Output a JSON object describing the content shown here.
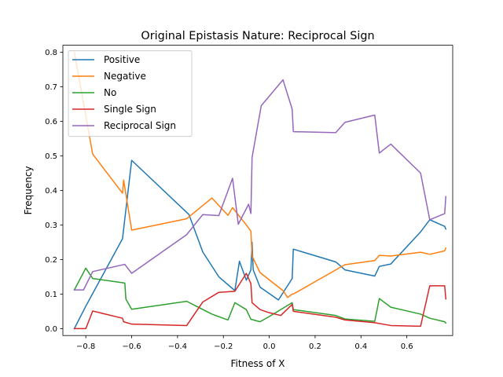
{
  "chart_data": {
    "type": "line",
    "title": "Original Epistasis Nature: Reciprocal Sign",
    "xlabel": "Fitness of X",
    "ylabel": "Frequency",
    "xlim": [
      -0.9,
      0.8
    ],
    "ylim": [
      -0.02,
      0.82
    ],
    "xticks": [
      -0.8,
      -0.6,
      -0.4,
      -0.2,
      0.0,
      0.2,
      0.4,
      0.6
    ],
    "yticks": [
      0.0,
      0.1,
      0.2,
      0.3,
      0.4,
      0.5,
      0.6,
      0.7,
      0.8
    ],
    "xtick_labels": [
      "−0.8",
      "−0.6",
      "−0.4",
      "−0.2",
      "0.0",
      "0.2",
      "0.4",
      "0.6"
    ],
    "ytick_labels": [
      "0.0",
      "0.1",
      "0.2",
      "0.3",
      "0.4",
      "0.5",
      "0.6",
      "0.7",
      "0.8"
    ],
    "grid": false,
    "legend_position": "top-left",
    "series": [
      {
        "name": "Positive",
        "color": "#1f77b4",
        "x": [
          -0.85,
          -0.8,
          -0.64,
          -0.6,
          -0.35,
          -0.29,
          -0.22,
          -0.15,
          -0.13,
          -0.1,
          -0.08,
          -0.075,
          -0.07,
          -0.04,
          0.04,
          0.1,
          0.105,
          0.29,
          0.33,
          0.46,
          0.48,
          0.53,
          0.66,
          0.7,
          0.765,
          0.77
        ],
        "y": [
          0.0,
          0.065,
          0.26,
          0.487,
          0.33,
          0.222,
          0.15,
          0.11,
          0.195,
          0.14,
          0.17,
          0.25,
          0.17,
          0.12,
          0.083,
          0.145,
          0.23,
          0.193,
          0.17,
          0.152,
          0.18,
          0.187,
          0.28,
          0.315,
          0.296,
          0.288
        ]
      },
      {
        "name": "Negative",
        "color": "#ff7f0e",
        "x": [
          -0.85,
          -0.77,
          -0.64,
          -0.635,
          -0.6,
          -0.36,
          -0.25,
          -0.18,
          -0.16,
          -0.1,
          -0.08,
          -0.075,
          -0.04,
          0.06,
          0.08,
          0.1,
          0.105,
          0.33,
          0.46,
          0.48,
          0.53,
          0.66,
          0.7,
          0.765,
          0.77
        ],
        "y": [
          0.8,
          0.505,
          0.392,
          0.43,
          0.285,
          0.318,
          0.378,
          0.328,
          0.35,
          0.3,
          0.282,
          0.21,
          0.162,
          0.11,
          0.09,
          0.1,
          0.1,
          0.185,
          0.197,
          0.212,
          0.21,
          0.221,
          0.215,
          0.225,
          0.233
        ]
      },
      {
        "name": "No",
        "color": "#2ca02c",
        "x": [
          -0.85,
          -0.8,
          -0.77,
          -0.63,
          -0.625,
          -0.6,
          -0.36,
          -0.25,
          -0.18,
          -0.15,
          -0.1,
          -0.08,
          -0.04,
          0.0,
          0.1,
          0.105,
          0.29,
          0.33,
          0.46,
          0.48,
          0.53,
          0.66,
          0.7,
          0.765,
          0.77
        ],
        "y": [
          0.112,
          0.175,
          0.145,
          0.132,
          0.085,
          0.056,
          0.079,
          0.042,
          0.025,
          0.075,
          0.055,
          0.027,
          0.02,
          0.035,
          0.075,
          0.055,
          0.038,
          0.028,
          0.021,
          0.087,
          0.062,
          0.042,
          0.03,
          0.02,
          0.016
        ]
      },
      {
        "name": "Single Sign",
        "color": "#d62728",
        "x": [
          -0.85,
          -0.8,
          -0.77,
          -0.64,
          -0.635,
          -0.6,
          -0.36,
          -0.29,
          -0.22,
          -0.15,
          -0.1,
          -0.08,
          -0.075,
          -0.04,
          0.0,
          0.05,
          0.1,
          0.105,
          0.29,
          0.33,
          0.46,
          0.53,
          0.66,
          0.7,
          0.765,
          0.77
        ],
        "y": [
          0.0,
          0.0,
          0.051,
          0.03,
          0.02,
          0.013,
          0.009,
          0.077,
          0.105,
          0.108,
          0.16,
          0.13,
          0.075,
          0.055,
          0.046,
          0.038,
          0.07,
          0.05,
          0.033,
          0.025,
          0.017,
          0.009,
          0.007,
          0.124,
          0.124,
          0.086
        ]
      },
      {
        "name": "Reciprocal Sign",
        "color": "#9467bd",
        "x": [
          -0.85,
          -0.81,
          -0.77,
          -0.63,
          -0.6,
          -0.36,
          -0.29,
          -0.22,
          -0.16,
          -0.135,
          -0.09,
          -0.08,
          -0.075,
          -0.035,
          0.06,
          0.1,
          0.105,
          0.29,
          0.33,
          0.46,
          0.48,
          0.53,
          0.66,
          0.7,
          0.765,
          0.77
        ],
        "y": [
          0.112,
          0.112,
          0.165,
          0.186,
          0.16,
          0.272,
          0.33,
          0.327,
          0.435,
          0.302,
          0.36,
          0.333,
          0.495,
          0.645,
          0.72,
          0.635,
          0.57,
          0.567,
          0.597,
          0.618,
          0.508,
          0.534,
          0.45,
          0.315,
          0.333,
          0.382
        ]
      }
    ]
  }
}
